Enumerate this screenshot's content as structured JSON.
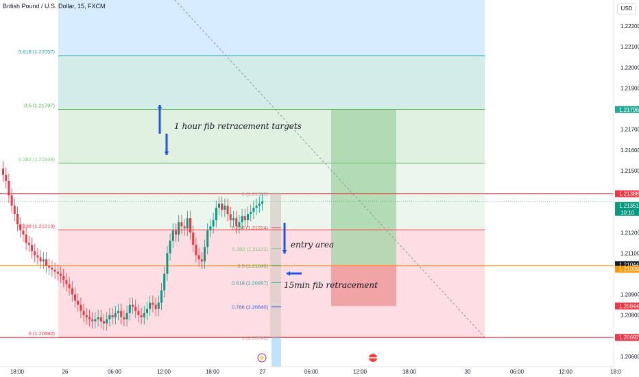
{
  "symbol": "British Pound / U.S. Dollar, 15, FXCM",
  "currency": "USD",
  "colors": {
    "up": "#089981",
    "down": "#f23645",
    "green_zone": "#c8e6c9",
    "red_zone": "#fdcdd3",
    "blue_zone": "#bbdefb",
    "orange": "#ff9800"
  },
  "annotations": {
    "targets": "1 hour fib retracement targets",
    "entry": "entry area",
    "fib15": "15min fib retracement"
  },
  "chart_data": {
    "type": "candlestick",
    "title": "British Pound / U.S. Dollar, 15, FXCM",
    "ylim": [
      1.2055,
      1.2232
    ],
    "x_ticks": [
      "18:00",
      "26",
      "06:00",
      "12:00",
      "18:00",
      "27",
      "06:00",
      "12:00",
      "18:00",
      "30",
      "06:00",
      "12:00",
      "18:0"
    ],
    "y_ticks": [
      "1.22200",
      "1.22100",
      "1.22000",
      "1.21900",
      "1.21700",
      "1.21600",
      "1.21500",
      "1.21200",
      "1.21100",
      "1.20900",
      "1.20800",
      "1.20600"
    ],
    "close_series": [
      1.2148,
      1.2145,
      1.2138,
      1.2133,
      1.2129,
      1.2124,
      1.2121,
      1.2119,
      1.2115,
      1.2114,
      1.2111,
      1.2109,
      1.2108,
      1.2106,
      1.2107,
      1.2104,
      1.2103,
      1.2102,
      1.2101,
      1.21,
      1.2099,
      1.2097,
      1.2095,
      1.2093,
      1.209,
      1.2087,
      1.2085,
      1.2082,
      1.208,
      1.2079,
      1.2078,
      1.2077,
      1.2078,
      1.2079,
      1.2077,
      1.2076,
      1.2078,
      1.208,
      1.2079,
      1.2081,
      1.2082,
      1.2079,
      1.2078,
      1.2081,
      1.2085,
      1.2084,
      1.2082,
      1.208,
      1.2079,
      1.2081,
      1.2083,
      1.2086,
      1.2085,
      1.2083,
      1.2086,
      1.2092,
      1.21,
      1.211,
      1.2116,
      1.2121,
      1.2119,
      1.2125,
      1.2123,
      1.2122,
      1.2127,
      1.212,
      1.2114,
      1.2109,
      1.2107,
      1.2106,
      1.2113,
      1.2121,
      1.2123,
      1.2126,
      1.2132,
      1.2134,
      1.2131,
      1.2133,
      1.2129,
      1.2126,
      1.2127,
      1.2123,
      1.2125,
      1.2128,
      1.2126,
      1.2129,
      1.213,
      1.2132,
      1.2133,
      1.2134,
      1.2135
    ],
    "fib_1h": [
      {
        "label": "0.618 (1.22057)",
        "value": 1.22057
      },
      {
        "label": "0.5 (1.21797)",
        "value": 1.21797
      },
      {
        "label": "0.382 (1.21536)",
        "value": 1.21536
      },
      {
        "label": "0.236 (1.21213)",
        "value": 1.21213
      },
      {
        "label": "0 (1.20692)",
        "value": 1.20692
      }
    ],
    "fib_15m": [
      {
        "label": "0 (1.21389)",
        "value": 1.21389
      },
      {
        "label": "0.236 (1.21224)",
        "value": 1.21224
      },
      {
        "label": "0.382 (1.21122)",
        "value": 1.21122
      },
      {
        "label": "0.5 (1.21040)",
        "value": 1.2104
      },
      {
        "label": "0.618 (1.20957)",
        "value": 1.20957
      },
      {
        "label": "0.786 (1.20840)",
        "value": 1.2084
      },
      {
        "label": "1 (1.20691)",
        "value": 1.20691
      }
    ],
    "price_tags": [
      {
        "text": "1.21796",
        "color": "#22ab94",
        "value": 1.21796
      },
      {
        "text": "1.21388",
        "color": "#f23645",
        "value": 1.21388
      },
      {
        "text": "1.21351",
        "sub": "10:10",
        "color": "#089981",
        "value": 1.21351
      },
      {
        "text": "1.21044",
        "color": "#131722",
        "value": 1.21044
      },
      {
        "text": "1.21039",
        "color": "#ff9800",
        "value": 1.21039
      },
      {
        "text": "1.20844",
        "color": "#f23645",
        "value": 1.20844
      },
      {
        "text": "1.20692",
        "color": "#f23645",
        "value": 1.20692
      }
    ]
  }
}
